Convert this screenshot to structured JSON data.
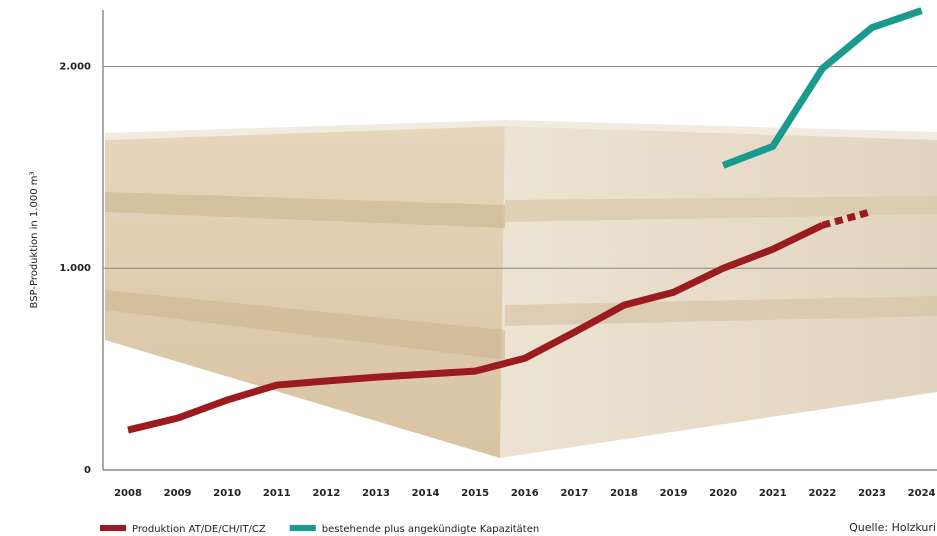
{
  "chart_data": {
    "type": "line",
    "y_label": "BSP-Produktion in 1.000 m³",
    "source": "Quelle: Holzkuri",
    "categories": [
      "2008",
      "2009",
      "2010",
      "2011",
      "2012",
      "2013",
      "2014",
      "2015",
      "2016",
      "2017",
      "2018",
      "2019",
      "2020",
      "2021",
      "2022",
      "2023",
      "2024"
    ],
    "series": [
      {
        "name": "Produktion AT/DE/CH/IT/CZ",
        "color": "#9b1b1e",
        "dash_from": "2022",
        "values": [
          198,
          257,
          347,
          421,
          441,
          460,
          475,
          490,
          554,
          683,
          817,
          881,
          1000,
          1094,
          1213,
          1282,
          null
        ]
      },
      {
        "name": "bestehende plus angekündigte Kapazitäten",
        "color": "#1a9a8e",
        "values": [
          null,
          null,
          null,
          null,
          null,
          null,
          null,
          null,
          null,
          null,
          null,
          null,
          1510,
          1604,
          1990,
          2193,
          2277
        ]
      }
    ],
    "ylim": [
      0,
      2280
    ],
    "yticks": [
      0,
      {
        "value": 1000,
        "label": "1.000"
      },
      {
        "value": 2000,
        "label": "2.000"
      }
    ],
    "grid": true
  }
}
